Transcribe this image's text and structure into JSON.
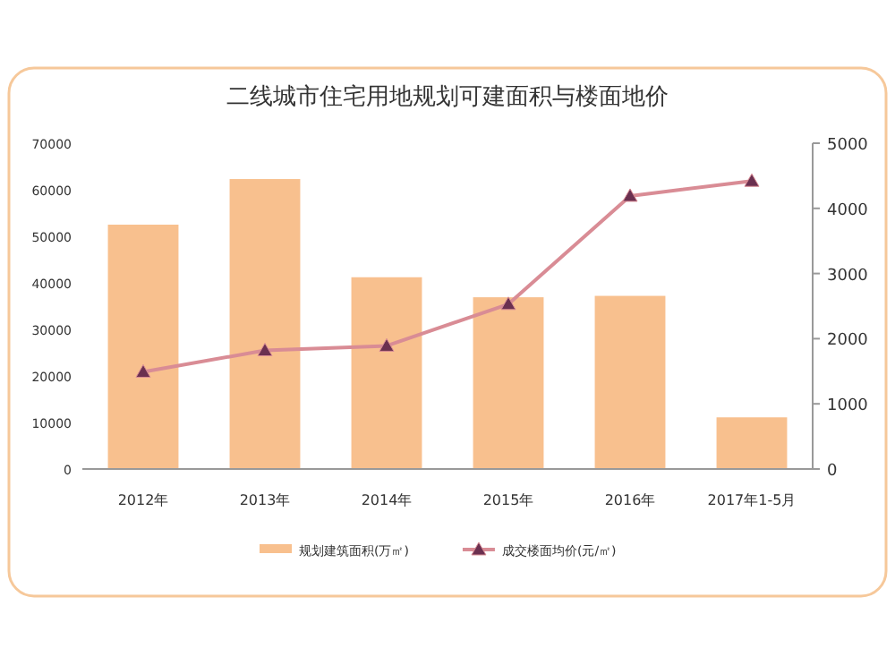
{
  "chart_data": {
    "type": "bar",
    "title": "二线城市住宅用地规划可建面积与楼面地价",
    "categories": [
      "2012年",
      "2013年",
      "2014年",
      "2015年",
      "2016年",
      "2017年1-5月"
    ],
    "series": [
      {
        "name": "规划建筑面积(万㎡)",
        "color": "#f8c08e",
        "values": [
          52500,
          62300,
          41200,
          36900,
          37200,
          11100
        ]
      },
      {
        "name": "成交楼面均价(元/㎡)",
        "color": "#d98c95",
        "type": "line",
        "axis": "y2",
        "values": [
          1490,
          1820,
          1890,
          2530,
          4190,
          4420
        ]
      }
    ],
    "marker": "triangle",
    "ylim": [
      0,
      70000
    ],
    "yticks": [
      0,
      10000,
      20000,
      30000,
      40000,
      50000,
      60000,
      70000
    ],
    "y2lim": [
      0,
      5000
    ],
    "y2ticks": [
      0,
      1000,
      2000,
      3000,
      4000,
      5000
    ],
    "legend": "bottom"
  }
}
